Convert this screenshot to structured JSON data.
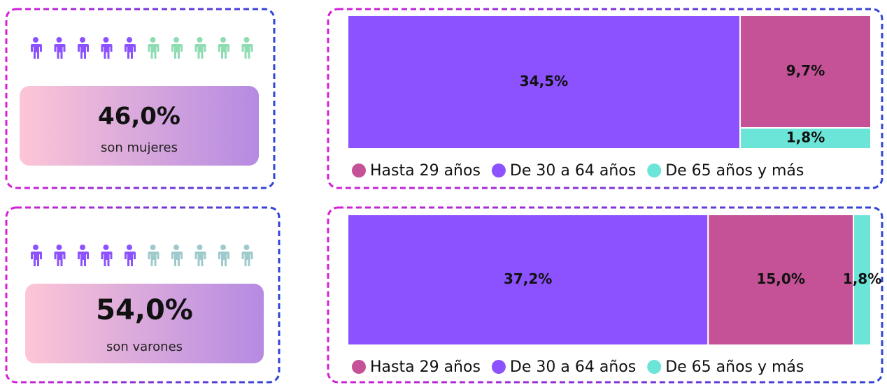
{
  "chart_data": [
    {
      "type": "treemap",
      "categories": [
        "Hasta 29 años",
        "De 30 a 64 años",
        "De 65 años y más"
      ],
      "values": [
        9.7,
        34.5,
        1.8
      ],
      "value_labels": [
        "9,7%",
        "34,5%",
        "1,8%"
      ],
      "colors": [
        "#c55196",
        "#8c52ff",
        "#6ce5d9"
      ],
      "card_value": "46,0%",
      "card_text": "son mujeres"
    },
    {
      "type": "treemap",
      "categories": [
        "Hasta 29 años",
        "De 30 a 64 años",
        "De 65 años y más"
      ],
      "values": [
        15.0,
        37.2,
        1.8
      ],
      "value_labels": [
        "15,0%",
        "37,2%",
        "1,8%"
      ],
      "colors": [
        "#c55196",
        "#8c52ff",
        "#6ce5d9"
      ],
      "card_value": "54,0%",
      "card_text": "son varones"
    }
  ]
}
